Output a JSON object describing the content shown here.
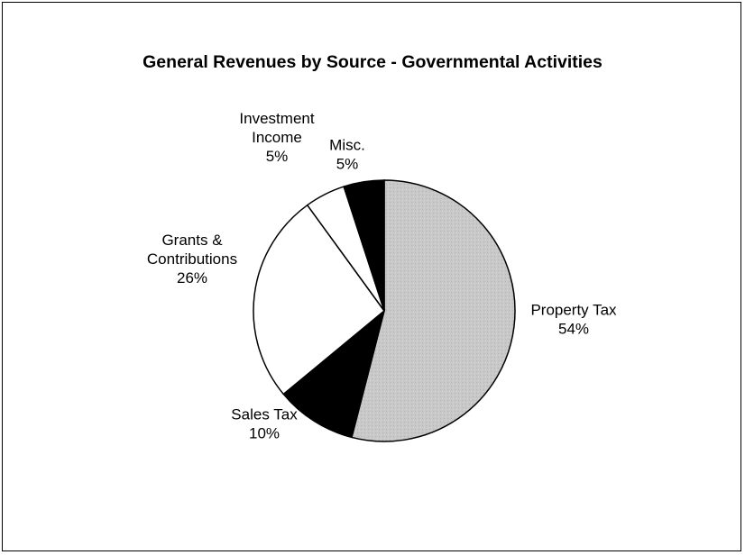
{
  "chart_data": {
    "type": "pie",
    "title": "General Revenues by Source - Governmental Activities",
    "slices": [
      {
        "label_lines": [
          "Property Tax",
          "54%"
        ],
        "value": 54,
        "color": "#c8c8c8"
      },
      {
        "label_lines": [
          "Sales Tax",
          "10%"
        ],
        "value": 10,
        "color": "#000000"
      },
      {
        "label_lines": [
          "Grants &",
          "Contributions",
          "26%"
        ],
        "value": 26,
        "color": "#ffffff"
      },
      {
        "label_lines": [
          "Investment",
          "Income",
          "5%"
        ],
        "value": 5,
        "color": "#ffffff"
      },
      {
        "label_lines": [
          "Misc.",
          "5%"
        ],
        "value": 5,
        "color": "#000000"
      }
    ]
  }
}
